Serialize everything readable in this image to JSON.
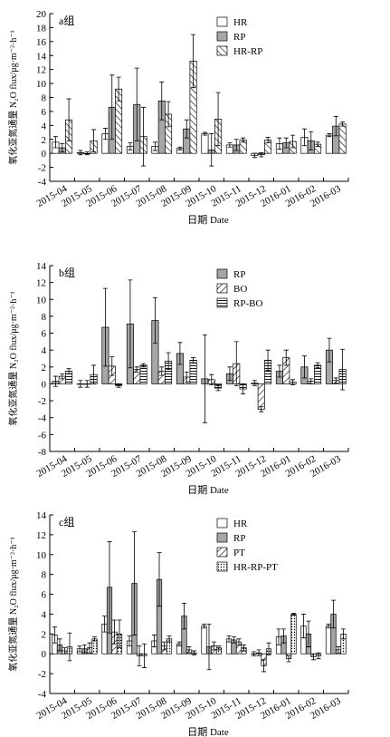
{
  "chart_data": [
    {
      "type": "bar",
      "annotation": "a组",
      "ylabel": "氧化亚氮通量 N₂O flux/μg·m⁻²·h⁻¹",
      "xlabel": "日期 Date",
      "categories": [
        "2015-04",
        "2015-05",
        "2015-06",
        "2015-07",
        "2015-08",
        "2015-09",
        "2015-10",
        "2015-11",
        "2015-12",
        "2016-01",
        "2016-02",
        "2016-03"
      ],
      "ylim": [
        -4,
        20
      ],
      "yticks": [
        -4,
        -2,
        0,
        2,
        4,
        6,
        8,
        10,
        12,
        14,
        16,
        18,
        20
      ],
      "legend": "top-right",
      "series": [
        {
          "name": "HR",
          "color": "#ffffff",
          "pattern": "solid",
          "values": [
            1.6,
            0.1,
            2.8,
            1.0,
            1.0,
            0.7,
            2.8,
            1.2,
            -0.3,
            1.4,
            2.3,
            2.6
          ],
          "errors": [
            0.8,
            0.3,
            0.8,
            0.5,
            0.6,
            0.2,
            0.2,
            0.3,
            0.3,
            0.8,
            1.2,
            0.2
          ]
        },
        {
          "name": "RP",
          "color": "#a6a6a6",
          "pattern": "solid",
          "values": [
            0.8,
            0.0,
            6.6,
            7.0,
            7.5,
            3.5,
            0.5,
            1.2,
            -0.2,
            1.5,
            1.8,
            3.9
          ],
          "errors": [
            0.6,
            0.2,
            4.6,
            5.2,
            2.7,
            1.3,
            2.3,
            0.8,
            0.3,
            0.7,
            1.3,
            1.4
          ]
        },
        {
          "name": "HR-RP",
          "color": "#ffffff",
          "pattern": "backslash",
          "values": [
            4.8,
            1.8,
            9.2,
            2.4,
            5.6,
            13.2,
            4.9,
            1.9,
            1.9,
            1.7,
            1.3,
            4.2
          ],
          "errors": [
            3.0,
            1.6,
            1.7,
            4.2,
            1.8,
            3.8,
            3.8,
            0.3,
            0.4,
            0.9,
            0.3,
            0.3
          ]
        }
      ]
    },
    {
      "type": "bar",
      "annotation": "b组",
      "ylabel": "氧化亚氮通量 N₂O flux/μg·m⁻²·h⁻¹",
      "xlabel": "日期 Date",
      "categories": [
        "2015-04",
        "2015-05",
        "2015-06",
        "2015-07",
        "2015-08",
        "2015-09",
        "2015-10",
        "2015-11",
        "2015-12",
        "2016-01",
        "2016-02",
        "2016-03"
      ],
      "ylim": [
        -8,
        14
      ],
      "yticks": [
        -8,
        -6,
        -4,
        -2,
        0,
        2,
        4,
        6,
        8,
        10,
        12,
        14
      ],
      "legend": "top-right",
      "series": [
        {
          "name": "RP",
          "color": "#a6a6a6",
          "pattern": "solid",
          "values": [
            0.3,
            0.0,
            6.7,
            7.1,
            7.5,
            3.6,
            0.6,
            1.2,
            0.1,
            1.5,
            2.0,
            4.0
          ],
          "errors": [
            0.6,
            0.4,
            4.6,
            5.2,
            2.7,
            1.3,
            5.2,
            0.8,
            0.3,
            0.7,
            1.3,
            1.4
          ]
        },
        {
          "name": "BO",
          "color": "#ffffff",
          "pattern": "slash",
          "values": [
            0.9,
            0.0,
            2.1,
            1.7,
            1.5,
            0.8,
            0.5,
            2.4,
            -3.0,
            3.1,
            0.3,
            0.4
          ],
          "errors": [
            0.3,
            0.4,
            1.1,
            0.3,
            0.5,
            0.6,
            0.6,
            2.6,
            0.3,
            0.9,
            0.3,
            0.3
          ]
        },
        {
          "name": "RP-BO",
          "color": "#ffffff",
          "pattern": "horizontal",
          "values": [
            1.5,
            1.1,
            -0.2,
            2.2,
            2.7,
            2.8,
            -0.5,
            -0.6,
            2.8,
            0.2,
            2.2,
            1.7
          ],
          "errors": [
            0.3,
            1.1,
            0.2,
            0.2,
            1.0,
            0.3,
            0.3,
            0.6,
            1.2,
            0.3,
            0.3,
            2.4
          ]
        }
      ]
    },
    {
      "type": "bar",
      "annotation": "c组",
      "ylabel": "氧化亚氮通量 N₂O flux/μg·m⁻²·h⁻¹",
      "xlabel": "日期 Date",
      "categories": [
        "2015-04",
        "2015-05",
        "2015-06",
        "2015-07",
        "2015-08",
        "2015-09",
        "2015-10",
        "2015-11",
        "2015-12",
        "2016-01",
        "2016-02",
        "2016-03"
      ],
      "ylim": [
        -4,
        14
      ],
      "yticks": [
        -4,
        -2,
        0,
        2,
        4,
        6,
        8,
        10,
        12,
        14
      ],
      "legend": "top-right",
      "series": [
        {
          "name": "HR",
          "color": "#ffffff",
          "pattern": "solid",
          "values": [
            1.9,
            0.5,
            3.0,
            1.3,
            1.3,
            1.0,
            2.8,
            1.5,
            0.0,
            1.7,
            2.8,
            2.8
          ],
          "errors": [
            0.8,
            0.3,
            0.8,
            0.5,
            0.6,
            0.2,
            0.2,
            0.3,
            0.2,
            0.8,
            1.2,
            0.2
          ]
        },
        {
          "name": "RP",
          "color": "#a6a6a6",
          "pattern": "solid",
          "values": [
            0.9,
            0.5,
            6.7,
            7.1,
            7.5,
            3.8,
            0.7,
            1.4,
            0.1,
            1.8,
            2.0,
            4.0
          ],
          "errors": [
            0.6,
            0.4,
            4.6,
            5.2,
            2.7,
            1.3,
            2.3,
            0.3,
            0.3,
            0.7,
            1.3,
            1.4
          ]
        },
        {
          "name": "PT",
          "color": "#ffffff",
          "pattern": "slash",
          "values": [
            0.3,
            0.6,
            2.2,
            -0.2,
            0.8,
            0.4,
            0.8,
            1.2,
            -1.2,
            -0.5,
            -0.3,
            0.4
          ],
          "errors": [
            0.3,
            0.5,
            1.2,
            1.0,
            0.4,
            0.3,
            0.4,
            0.3,
            0.6,
            0.3,
            0.3,
            0.3
          ]
        },
        {
          "name": "HR-RP-PT",
          "color": "#ffffff",
          "pattern": "dots",
          "values": [
            0.7,
            1.5,
            2.0,
            -0.2,
            1.5,
            0.1,
            0.6,
            0.6,
            0.5,
            4.0,
            -0.2,
            2.0
          ],
          "errors": [
            1.4,
            0.2,
            1.4,
            1.2,
            0.3,
            0.2,
            0.2,
            0.3,
            0.6,
            0.1,
            0.3,
            0.5
          ]
        }
      ]
    }
  ]
}
